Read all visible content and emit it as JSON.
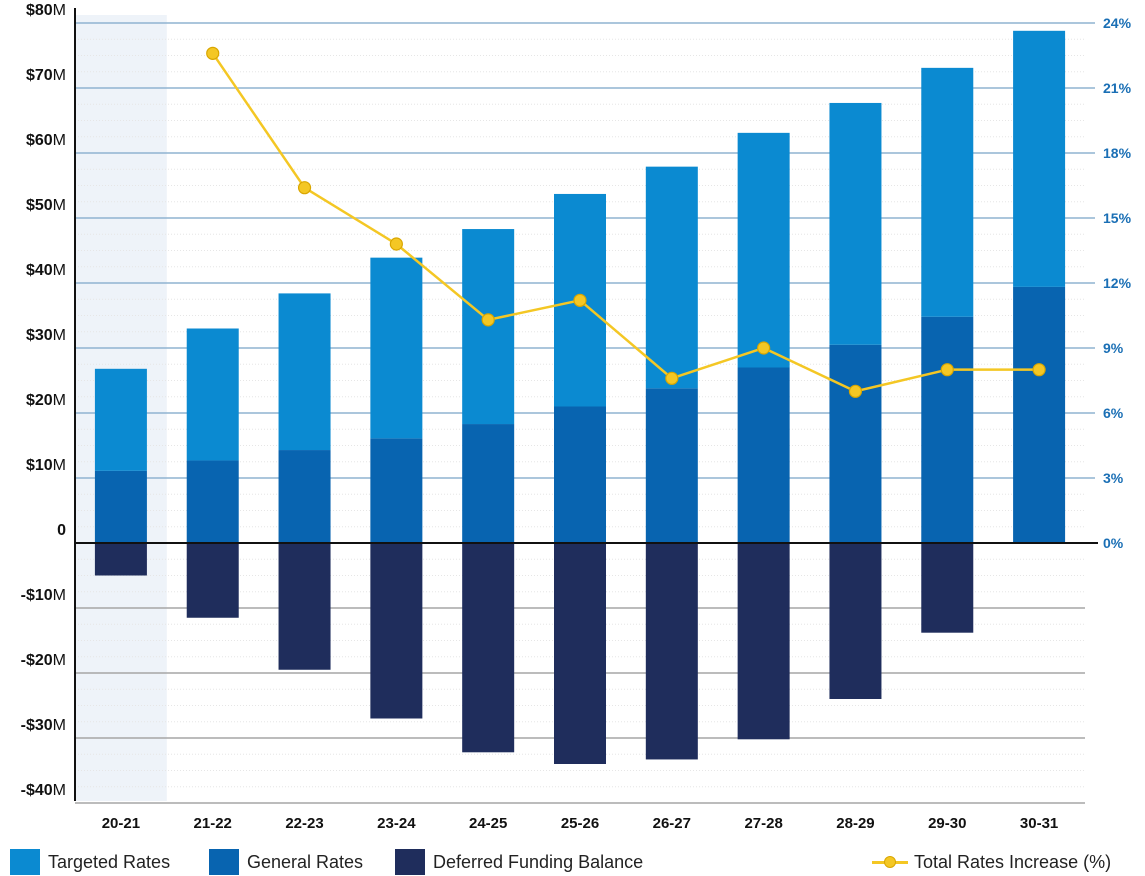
{
  "chart_data": {
    "type": "bar",
    "stacked": true,
    "categories": [
      "20-21",
      "21-22",
      "22-23",
      "23-24",
      "24-25",
      "25-26",
      "26-27",
      "27-28",
      "28-29",
      "29-30",
      "30-31"
    ],
    "highlighted_category": "20-21",
    "series": [
      {
        "name": "Targeted Rates",
        "color": "#0b8ad1",
        "axis": "left",
        "values": [
          15.7,
          20.3,
          24.1,
          27.8,
          30.0,
          32.7,
          34.1,
          36.1,
          37.2,
          38.3,
          39.4
        ]
      },
      {
        "name": "General Rates",
        "color": "#0864b0",
        "axis": "left",
        "values": [
          11.1,
          12.7,
          14.3,
          16.1,
          18.3,
          21.0,
          23.8,
          27.0,
          30.5,
          34.8,
          39.4
        ]
      },
      {
        "name": "Deferred Funding Balance",
        "color": "#1f2d5c",
        "axis": "left",
        "values": [
          -5.0,
          -11.5,
          -19.5,
          -27.0,
          -32.2,
          -34.0,
          -33.3,
          -30.2,
          -24.0,
          -13.8,
          0
        ]
      },
      {
        "name": "Total Rates Increase (%)",
        "type": "line",
        "color": "#f4c724",
        "axis": "right",
        "values": [
          null,
          22.6,
          16.4,
          13.8,
          10.3,
          11.2,
          7.6,
          9.0,
          7.0,
          8.0,
          8.0
        ]
      }
    ],
    "y_left": {
      "range": [
        -40,
        80
      ],
      "ticks": [
        {
          "value": 80,
          "num": "$80",
          "unit": "M"
        },
        {
          "value": 70,
          "num": "$70",
          "unit": "M"
        },
        {
          "value": 60,
          "num": "$60",
          "unit": "M"
        },
        {
          "value": 50,
          "num": "$50",
          "unit": "M"
        },
        {
          "value": 40,
          "num": "$40",
          "unit": "M"
        },
        {
          "value": 30,
          "num": "$30",
          "unit": "M"
        },
        {
          "value": 20,
          "num": "$20",
          "unit": "M"
        },
        {
          "value": 10,
          "num": "$10",
          "unit": "M"
        },
        {
          "value": 0,
          "num": "0",
          "unit": ""
        },
        {
          "value": -10,
          "num": "-$10",
          "unit": "M"
        },
        {
          "value": -20,
          "num": "-$20",
          "unit": "M"
        },
        {
          "value": -30,
          "num": "-$30",
          "unit": "M"
        },
        {
          "value": -40,
          "num": "-$40",
          "unit": "M"
        }
      ]
    },
    "y_right": {
      "range": [
        0,
        24
      ],
      "ticks": [
        {
          "value": 24,
          "label": "24%"
        },
        {
          "value": 21,
          "label": "21%"
        },
        {
          "value": 18,
          "label": "18%"
        },
        {
          "value": 15,
          "label": "15%"
        },
        {
          "value": 12,
          "label": "12%"
        },
        {
          "value": 9,
          "label": "9%"
        },
        {
          "value": 6,
          "label": "6%"
        },
        {
          "value": 3,
          "label": "3%"
        },
        {
          "value": 0,
          "label": "0%"
        }
      ]
    },
    "grid": true,
    "legend_position": "bottom"
  },
  "legend": {
    "targeted": "Targeted Rates",
    "general": "General Rates",
    "deferred": "Deferred Funding Balance",
    "total": "Total Rates Increase (%)"
  },
  "colors": {
    "targeted": "#0b8ad1",
    "general": "#0864b0",
    "deferred": "#1f2d5c",
    "line": "#f4c724",
    "highlight_band": "#eef3f9",
    "right_axis": "#1a6fb5"
  }
}
